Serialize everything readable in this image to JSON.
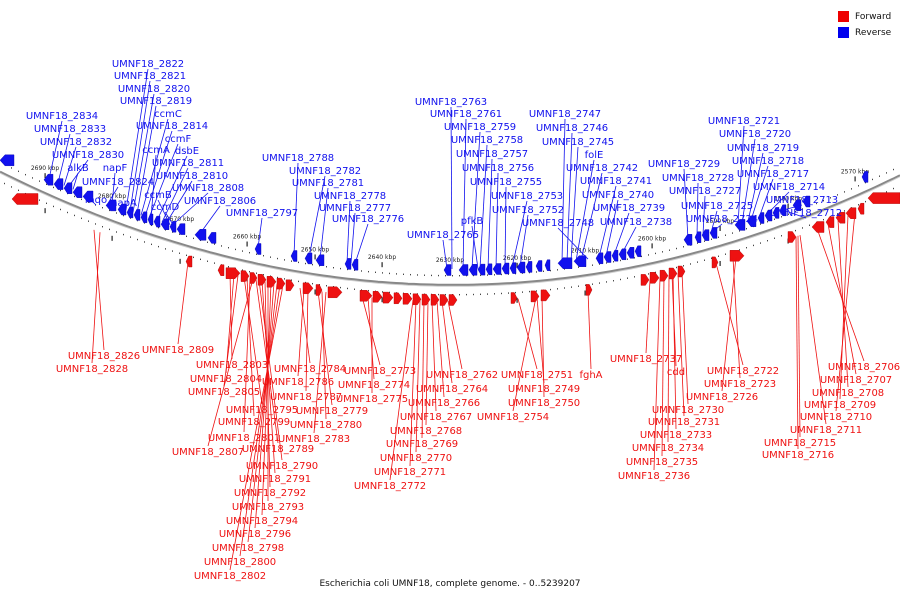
{
  "legend": [
    {
      "label": "Forward",
      "color": "#ee0000"
    },
    {
      "label": "Reverse",
      "color": "#0000ee"
    }
  ],
  "caption": "Escherichia coli UMNF18, complete genome. - 0..5239207",
  "colors": {
    "forward": "#ee1111",
    "reverse": "#1111ee",
    "backbone": "#888888"
  },
  "ticks": [
    "2690 kbp",
    "2680 kbp",
    "2670 kbp",
    "2660 kbp",
    "2650 kbp",
    "2640 kbp",
    "2630 kbp",
    "2620 kbp",
    "2610 kbp",
    "2600 kbp",
    "2590 kbp",
    "2580 kbp",
    "2570 kbp"
  ],
  "reverse_labels": [
    "UMNF18_2834",
    "UMNF18_2833",
    "UMNF18_2832",
    "UMNF18_2830",
    "alkB",
    "mqo",
    "UMNF18_2824",
    "napF",
    "napA",
    "UMNF18_2822",
    "UMNF18_2821",
    "UMNF18_2820",
    "UMNF18_2819",
    "ccmC",
    "UMNF18_2814",
    "ccmF",
    "ccmA",
    "dsbE",
    "UMNF18_2811",
    "UMNF18_2810",
    "ccmB",
    "UMNF18_2808",
    "ccmD",
    "UMNF18_2806",
    "UMNF18_2797",
    "UMNF18_2788",
    "UMNF18_2782",
    "UMNF18_2781",
    "UMNF18_2778",
    "UMNF18_2777",
    "UMNF18_2776",
    "UMNF18_2763",
    "UMNF18_2761",
    "UMNF18_2759",
    "UMNF18_2758",
    "UMNF18_2757",
    "UMNF18_2756",
    "UMNF18_2755",
    "UMNF18_2753",
    "UMNF18_2752",
    "pfkB",
    "UMNF18_2765",
    "UMNF18_2747",
    "UMNF18_2746",
    "UMNF18_2745",
    "folE",
    "UMNF18_2742",
    "UMNF18_2741",
    "UMNF18_2740",
    "UMNF18_2739",
    "UMNF18_2738",
    "UMNF18_2748",
    "UMNF18_2729",
    "UMNF18_2728",
    "UMNF18_2727",
    "UMNF18_2725",
    "UMNF18_2724",
    "UMNF18_2721",
    "UMNF18_2720",
    "UMNF18_2719",
    "UMNF18_2718",
    "UMNF18_2717",
    "UMNF18_2714",
    "UMNF18_2713",
    "UMNF18_2712"
  ],
  "forward_labels": [
    "UMNF18_2826",
    "UMNF18_2828",
    "UMNF18_2809",
    "UMNF18_2803",
    "UMNF18_2804",
    "UMNF18_2805",
    "UMNF18_2795",
    "UMNF18_2799",
    "UMNF18_2801",
    "UMNF18_2807",
    "UMNF18_2789",
    "UMNF18_2790",
    "UMNF18_2791",
    "UMNF18_2792",
    "UMNF18_2793",
    "UMNF18_2794",
    "UMNF18_2796",
    "UMNF18_2798",
    "UMNF18_2800",
    "UMNF18_2802",
    "UMNF18_2784",
    "UMNF18_2786",
    "UMNF18_2787",
    "UMNF18_2779",
    "UMNF18_2780",
    "UMNF18_2783",
    "UMNF18_2773",
    "UMNF18_2774",
    "UMNF18_2775",
    "UMNF18_2762",
    "UMNF18_2764",
    "UMNF18_2766",
    "UMNF18_2767",
    "UMNF18_2768",
    "UMNF18_2769",
    "UMNF18_2770",
    "UMNF18_2771",
    "UMNF18_2772",
    "UMNF18_2751",
    "UMNF18_2749",
    "UMNF18_2750",
    "UMNF18_2754",
    "fghA",
    "UMNF18_2737",
    "cdd",
    "UMNF18_2730",
    "UMNF18_2731",
    "UMNF18_2733",
    "UMNF18_2734",
    "UMNF18_2735",
    "UMNF18_2736",
    "UMNF18_2722",
    "UMNF18_2723",
    "UMNF18_2726",
    "UMNF18_2706",
    "UMNF18_2707",
    "UMNF18_2708",
    "UMNF18_2709",
    "UMNF18_2710",
    "UMNF18_2711",
    "UMNF18_2715",
    "UMNF18_2716"
  ]
}
